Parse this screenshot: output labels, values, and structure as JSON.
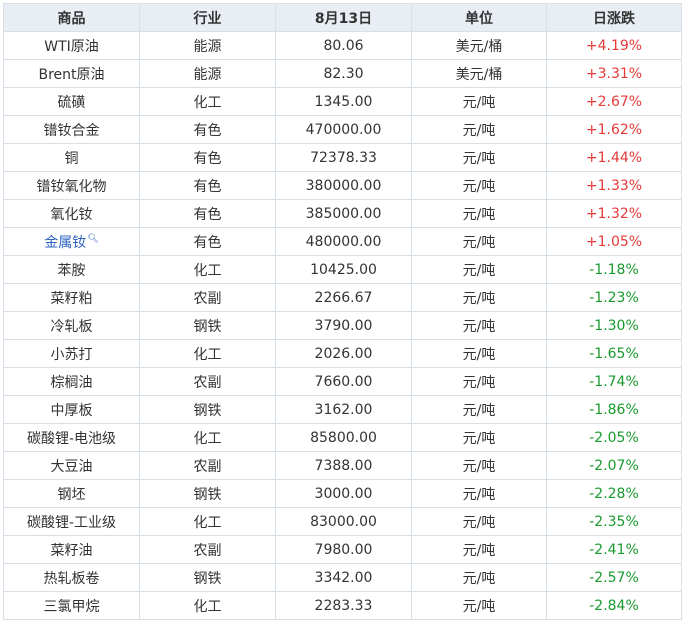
{
  "colors": {
    "up": "#e63a3a",
    "down": "#1a9a2e",
    "link": "#2d62c0",
    "header_bg": "#e9eef5"
  },
  "headers": [
    "商品",
    "行业",
    "8月13日",
    "单位",
    "日涨跌"
  ],
  "rows": [
    {
      "name": "WTI原油",
      "industry": "能源",
      "price": "80.06",
      "unit": "美元/桶",
      "change": "+4.19%"
    },
    {
      "name": "Brent原油",
      "industry": "能源",
      "price": "82.30",
      "unit": "美元/桶",
      "change": "+3.31%"
    },
    {
      "name": "硫磺",
      "industry": "化工",
      "price": "1345.00",
      "unit": "元/吨",
      "change": "+2.67%"
    },
    {
      "name": "镨钕合金",
      "industry": "有色",
      "price": "470000.00",
      "unit": "元/吨",
      "change": "+1.62%"
    },
    {
      "name": "铜",
      "industry": "有色",
      "price": "72378.33",
      "unit": "元/吨",
      "change": "+1.44%"
    },
    {
      "name": "镨钕氧化物",
      "industry": "有色",
      "price": "380000.00",
      "unit": "元/吨",
      "change": "+1.33%"
    },
    {
      "name": "氧化钕",
      "industry": "有色",
      "price": "385000.00",
      "unit": "元/吨",
      "change": "+1.32%"
    },
    {
      "name": "金属钕",
      "industry": "有色",
      "price": "480000.00",
      "unit": "元/吨",
      "change": "+1.05%",
      "link": true
    },
    {
      "name": "苯胺",
      "industry": "化工",
      "price": "10425.00",
      "unit": "元/吨",
      "change": "-1.18%"
    },
    {
      "name": "菜籽粕",
      "industry": "农副",
      "price": "2266.67",
      "unit": "元/吨",
      "change": "-1.23%"
    },
    {
      "name": "冷轧板",
      "industry": "钢铁",
      "price": "3790.00",
      "unit": "元/吨",
      "change": "-1.30%"
    },
    {
      "name": "小苏打",
      "industry": "化工",
      "price": "2026.00",
      "unit": "元/吨",
      "change": "-1.65%"
    },
    {
      "name": "棕榈油",
      "industry": "农副",
      "price": "7660.00",
      "unit": "元/吨",
      "change": "-1.74%"
    },
    {
      "name": "中厚板",
      "industry": "钢铁",
      "price": "3162.00",
      "unit": "元/吨",
      "change": "-1.86%"
    },
    {
      "name": "碳酸锂-电池级",
      "industry": "化工",
      "price": "85800.00",
      "unit": "元/吨",
      "change": "-2.05%"
    },
    {
      "name": "大豆油",
      "industry": "农副",
      "price": "7388.00",
      "unit": "元/吨",
      "change": "-2.07%"
    },
    {
      "name": "钢坯",
      "industry": "钢铁",
      "price": "3000.00",
      "unit": "元/吨",
      "change": "-2.28%"
    },
    {
      "name": "碳酸锂-工业级",
      "industry": "化工",
      "price": "83000.00",
      "unit": "元/吨",
      "change": "-2.35%"
    },
    {
      "name": "菜籽油",
      "industry": "农副",
      "price": "7980.00",
      "unit": "元/吨",
      "change": "-2.41%"
    },
    {
      "name": "热轧板卷",
      "industry": "钢铁",
      "price": "3342.00",
      "unit": "元/吨",
      "change": "-2.57%"
    },
    {
      "name": "三氯甲烷",
      "industry": "化工",
      "price": "2283.33",
      "unit": "元/吨",
      "change": "-2.84%"
    }
  ]
}
